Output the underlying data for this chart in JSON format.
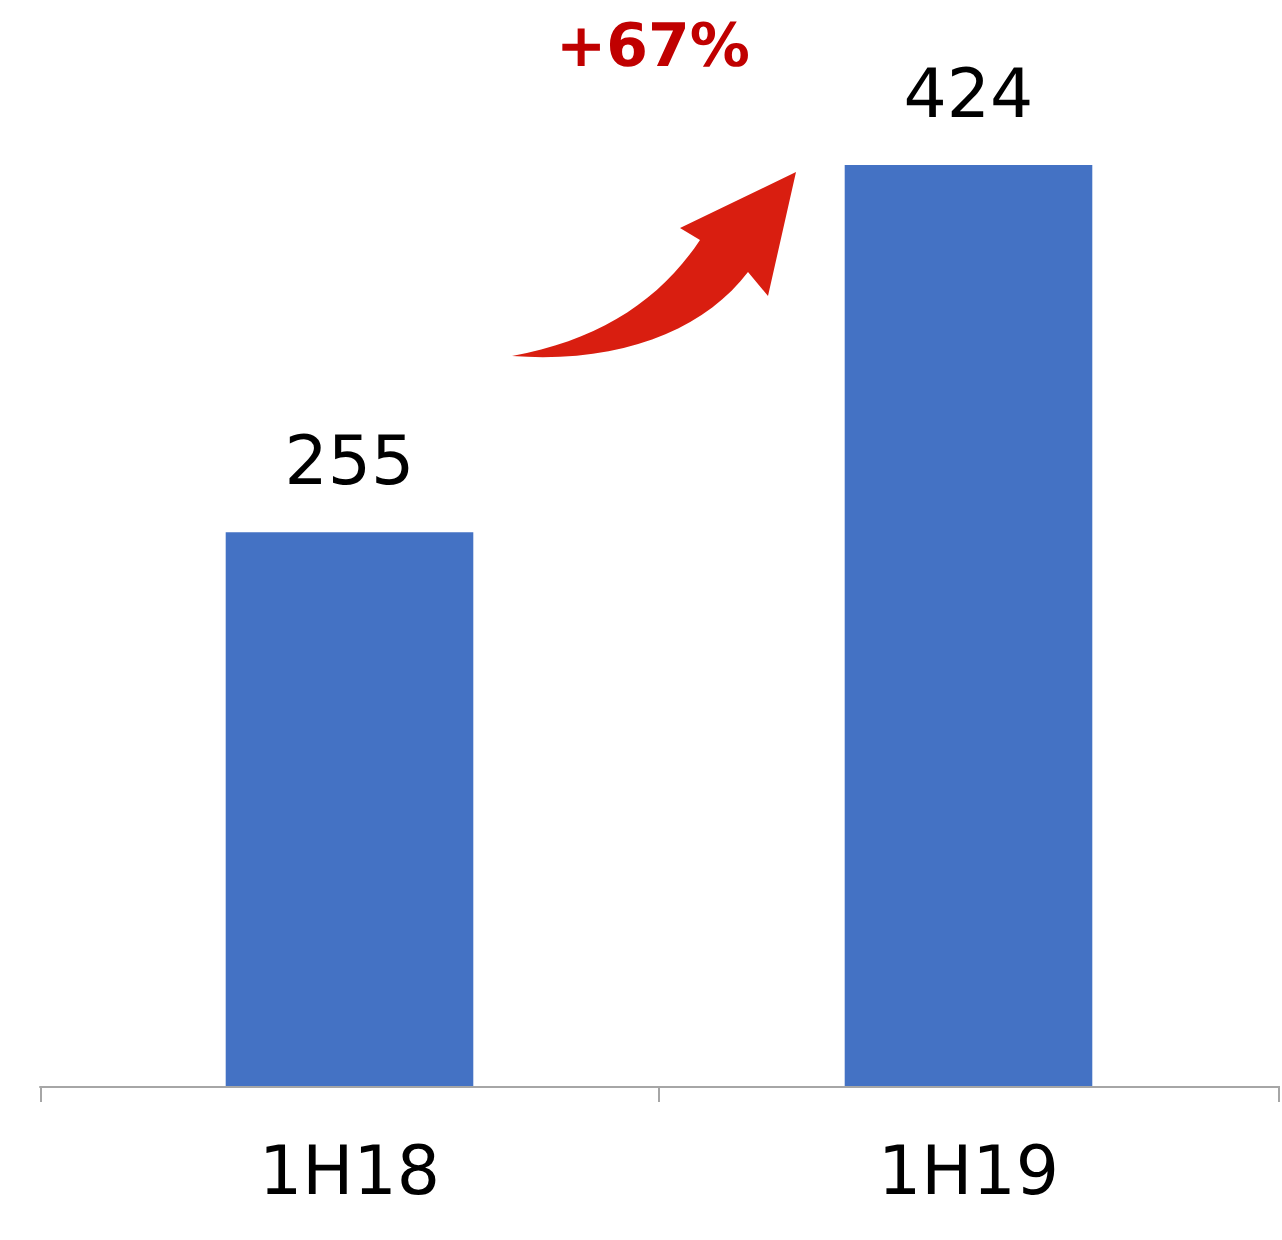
{
  "chart_data": {
    "type": "bar",
    "categories": [
      "1H18",
      "1H19"
    ],
    "values": [
      255,
      424
    ],
    "color": "#4472c4",
    "data_labels": true,
    "annotations": [
      "+67%"
    ]
  }
}
